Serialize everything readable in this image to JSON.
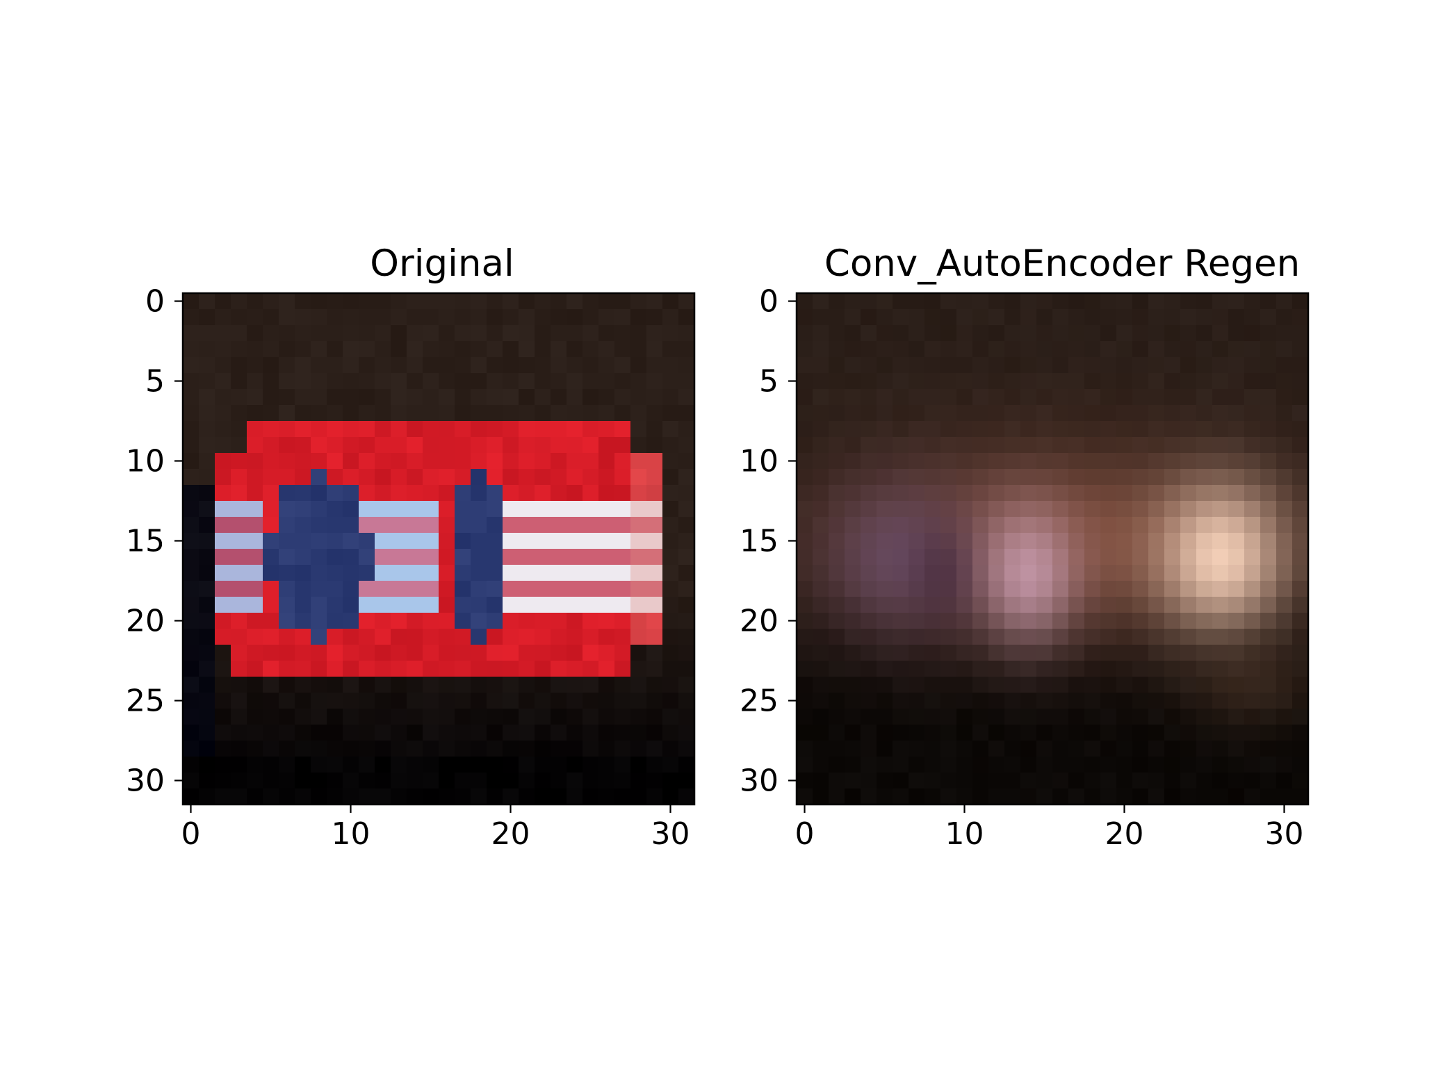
{
  "figure": {
    "background": "#ffffff"
  },
  "chart_data": [
    {
      "type": "heatmap",
      "title": "Original",
      "xlabel": "",
      "ylabel": "",
      "xlim": [
        -0.5,
        31.5
      ],
      "ylim": [
        31.5,
        -0.5
      ],
      "x_ticks": [
        0,
        10,
        20,
        30
      ],
      "y_ticks": [
        0,
        5,
        10,
        15,
        20,
        25,
        30
      ],
      "grid": false,
      "image_size": [
        32,
        32
      ],
      "content": "32x32 RGB pixel image of a red car with white and blue stripes on a dark background",
      "palette": {
        "background_top": "#2b1f19",
        "background_bottom": "#060405",
        "car_red": "#d61c27",
        "window_blue": "#2b3a72",
        "stripe_light_blue": "#a9c6ea",
        "stripe_white": "#eeeaf0"
      }
    },
    {
      "type": "heatmap",
      "title": "Conv_AutoEncoder Regen",
      "xlabel": "",
      "ylabel": "",
      "xlim": [
        -0.5,
        31.5
      ],
      "ylim": [
        31.5,
        -0.5
      ],
      "x_ticks": [
        0,
        10,
        20,
        30
      ],
      "y_ticks": [
        0,
        5,
        10,
        15,
        20,
        25,
        30
      ],
      "grid": false,
      "image_size": [
        32,
        32
      ],
      "content": "32x32 RGB blurry reconstruction of the car image by a convolutional autoencoder",
      "palette": {
        "background_top": "#2a1e18",
        "background_bottom": "#0b0806",
        "body_brown": "#7a4a3a",
        "left_purple": "#6a4d68",
        "mid_pink": "#c69aad",
        "right_highlight": "#f1cdb6"
      }
    }
  ]
}
